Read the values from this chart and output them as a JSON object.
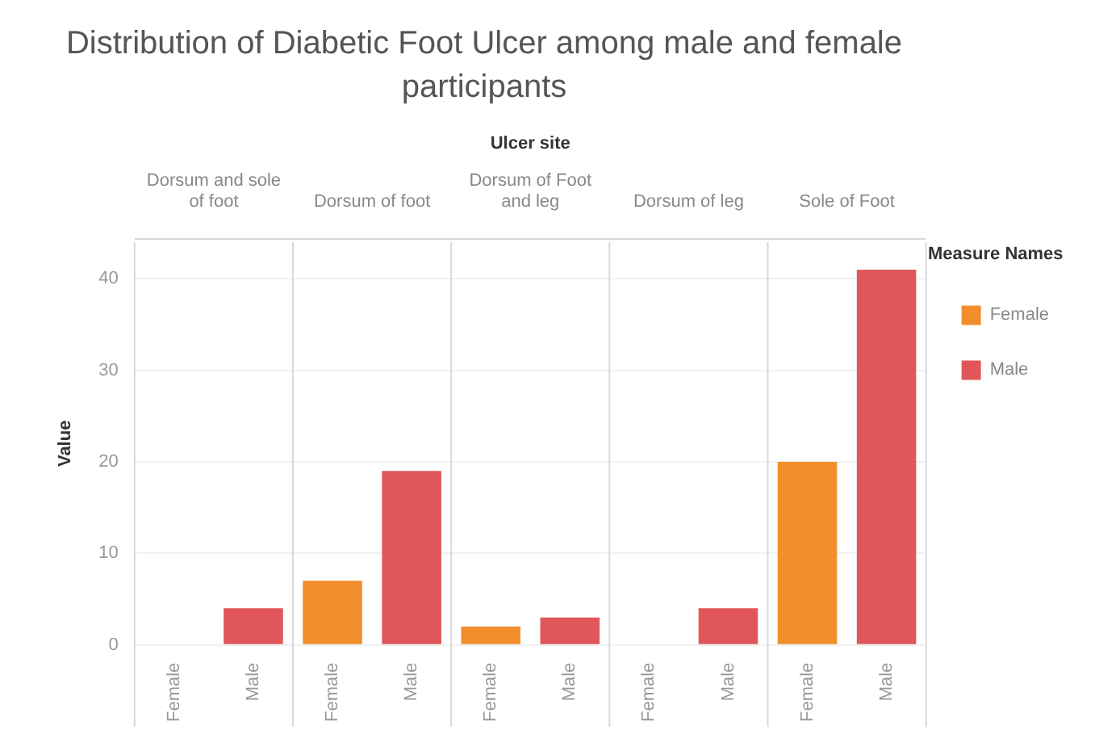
{
  "chart_data": {
    "type": "bar",
    "title": "Distribution of Diabetic Foot Ulcer among male and female participants",
    "ylabel": "Value",
    "legend_title": "Measure Names",
    "categories": [
      "Female",
      "Male",
      "Female",
      "Male",
      "Female",
      "Male",
      "Female",
      "Male",
      "Female",
      "Male"
    ],
    "annotations": [
      "Ulcer site",
      "Dorsum and sole of foot",
      "Dorsum of foot",
      "Dorsum of Foot and leg",
      "Dorsum of leg",
      "Sole of Foot"
    ],
    "series": [
      {
        "name": "Female",
        "color": "#f28e2b",
        "values": [
          null,
          null,
          7,
          null,
          2,
          null,
          null,
          null,
          20,
          null
        ]
      },
      {
        "name": "Male",
        "color": "#e15759",
        "values": [
          null,
          4,
          null,
          19,
          null,
          3,
          null,
          4,
          null,
          41
        ]
      }
    ],
    "ylim": [
      0,
      44
    ],
    "yticks": [
      0,
      10,
      20,
      30,
      40
    ],
    "grid": "y",
    "legend": "top right"
  }
}
